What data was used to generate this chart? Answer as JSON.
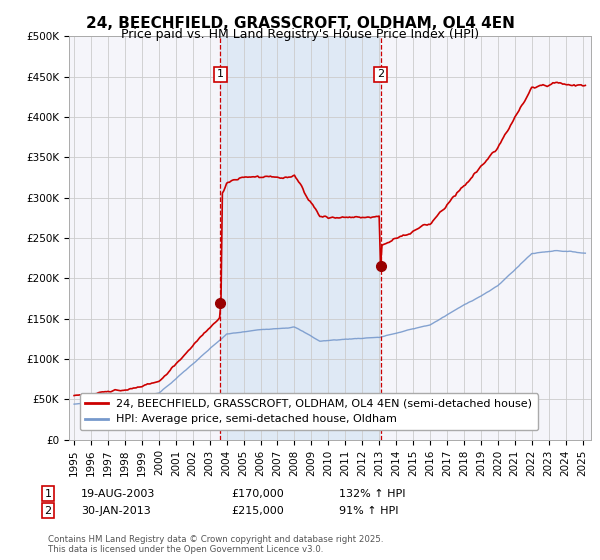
{
  "title": "24, BEECHFIELD, GRASSCROFT, OLDHAM, OL4 4EN",
  "subtitle": "Price paid vs. HM Land Registry's House Price Index (HPI)",
  "background_color": "#ffffff",
  "plot_bg_color": "#f0f0f8",
  "shade_color": "#dce8f5",
  "grid_color": "#cccccc",
  "ylabel": "",
  "ylim": [
    0,
    500000
  ],
  "yticks": [
    0,
    50000,
    100000,
    150000,
    200000,
    250000,
    300000,
    350000,
    400000,
    450000,
    500000
  ],
  "ytick_labels": [
    "£0",
    "£50K",
    "£100K",
    "£150K",
    "£200K",
    "£250K",
    "£300K",
    "£350K",
    "£400K",
    "£450K",
    "£500K"
  ],
  "xlim_start": 1994.7,
  "xlim_end": 2025.5,
  "xticks": [
    1995,
    1996,
    1997,
    1998,
    1999,
    2000,
    2001,
    2002,
    2003,
    2004,
    2005,
    2006,
    2007,
    2008,
    2009,
    2010,
    2011,
    2012,
    2013,
    2014,
    2015,
    2016,
    2017,
    2018,
    2019,
    2020,
    2021,
    2022,
    2023,
    2024,
    2025
  ],
  "hpi_color": "#7799cc",
  "price_color": "#cc0000",
  "marker_color": "#990000",
  "vline_color": "#cc0000",
  "annotation_box_color": "#cc0000",
  "purchase1_x": 2003.637,
  "purchase1_y": 170000,
  "purchase1_label": "1",
  "purchase2_x": 2013.083,
  "purchase2_y": 215000,
  "purchase2_label": "2",
  "legend_line1": "24, BEECHFIELD, GRASSCROFT, OLDHAM, OL4 4EN (semi-detached house)",
  "legend_line2": "HPI: Average price, semi-detached house, Oldham",
  "annotation1_date": "19-AUG-2003",
  "annotation1_price": "£170,000",
  "annotation1_hpi": "132% ↑ HPI",
  "annotation2_date": "30-JAN-2013",
  "annotation2_price": "£215,000",
  "annotation2_hpi": "91% ↑ HPI",
  "footnote": "Contains HM Land Registry data © Crown copyright and database right 2025.\nThis data is licensed under the Open Government Licence v3.0.",
  "title_fontsize": 11,
  "subtitle_fontsize": 9,
  "tick_fontsize": 7.5,
  "legend_fontsize": 8
}
